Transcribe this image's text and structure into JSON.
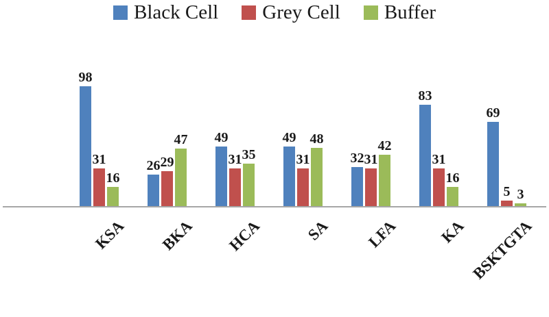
{
  "chart_data": {
    "type": "bar",
    "categories": [
      "KSA",
      "BKA",
      "HCA",
      "SA",
      "LFA",
      "KA",
      "BSKTGTA"
    ],
    "series": [
      {
        "name": "Black Cell",
        "color": "#4F81BD",
        "values": [
          98,
          26,
          49,
          49,
          32,
          83,
          69
        ]
      },
      {
        "name": "Grey Cell",
        "color": "#C0504D",
        "values": [
          31,
          29,
          31,
          31,
          31,
          31,
          5
        ]
      },
      {
        "name": "Buffer",
        "color": "#9BBB59",
        "values": [
          16,
          47,
          35,
          48,
          42,
          16,
          3
        ]
      }
    ],
    "title": "",
    "xlabel": "",
    "ylabel": "",
    "ylim": [
      0,
      110
    ],
    "grid": false,
    "legend_position": "top",
    "data_labels": true
  }
}
